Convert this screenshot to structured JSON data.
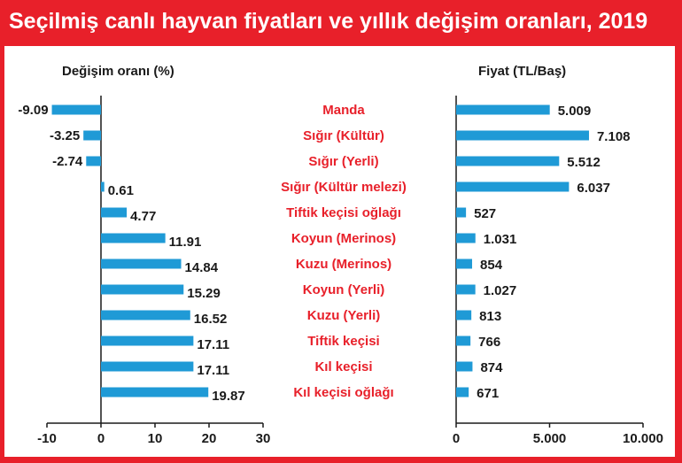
{
  "title": "Seçilmiş canlı hayvan fiyatları ve yıllık değişim oranları, 2019",
  "colors": {
    "bar": "#1f9ad6",
    "frame": "#e8202a",
    "category_text": "#e8202a"
  },
  "chart_data": [
    {
      "type": "bar",
      "orientation": "horizontal",
      "ylabel": "Değişim oranı (%)",
      "xlim": [
        -10,
        30
      ],
      "xticks": [
        "-10",
        "0",
        "10",
        "20",
        "30"
      ],
      "categories": [
        "Manda",
        "Sığır (Kültür)",
        "Sığır (Yerli)",
        "Sığır (Kültür melezi)",
        "Tiftik keçisi oğlağı",
        "Koyun (Merinos)",
        "Kuzu (Merinos)",
        "Koyun (Yerli)",
        "Kuzu (Yerli)",
        "Tiftik keçisi",
        "Kıl keçisi",
        "Kıl keçisi oğlağı"
      ],
      "values": [
        -9.09,
        -3.25,
        -2.74,
        0.61,
        4.77,
        11.91,
        14.84,
        15.29,
        16.52,
        17.11,
        17.11,
        19.87
      ],
      "labels": [
        "-9.09",
        "-3.25",
        "-2.74",
        "0.61",
        "4.77",
        "11.91",
        "14.84",
        "15.29",
        "16.52",
        "17.11",
        "17.11",
        "19.87"
      ]
    },
    {
      "type": "bar",
      "orientation": "horizontal",
      "ylabel": "Fiyat (TL/Baş)",
      "xlim": [
        0,
        10000
      ],
      "xticks": [
        "0",
        "5.000",
        "10.000"
      ],
      "categories": [
        "Manda",
        "Sığır (Kültür)",
        "Sığır (Yerli)",
        "Sığır (Kültür melezi)",
        "Tiftik keçisi oğlağı",
        "Koyun (Merinos)",
        "Kuzu (Merinos)",
        "Koyun (Yerli)",
        "Kuzu (Yerli)",
        "Tiftik keçisi",
        "Kıl keçisi",
        "Kıl keçisi oğlağı"
      ],
      "values": [
        5009,
        7108,
        5512,
        6037,
        527,
        1031,
        854,
        1027,
        813,
        766,
        874,
        671
      ],
      "labels": [
        "5.009",
        "7.108",
        "5.512",
        "6.037",
        "527",
        "1.031",
        "854",
        "1.027",
        "813",
        "766",
        "874",
        "671"
      ]
    }
  ]
}
